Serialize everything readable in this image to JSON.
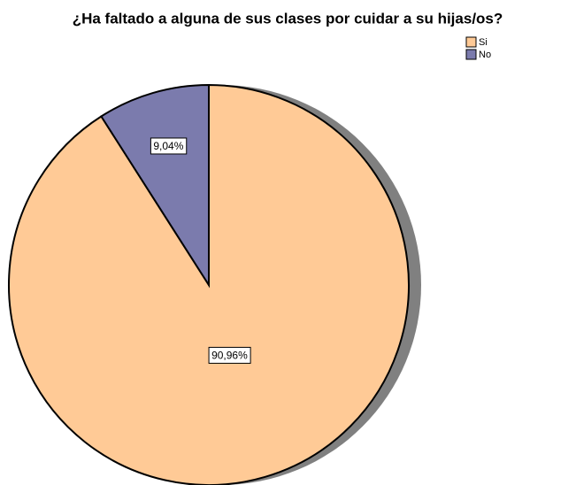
{
  "chart_data": {
    "type": "pie",
    "title": "¿Ha faltado a alguna de sus clases por cuidar a su hijas/os?",
    "categories": [
      "Si",
      "No"
    ],
    "values": [
      90.96,
      9.04
    ],
    "value_labels": [
      "90,96%",
      "9,04%"
    ],
    "colors": [
      "#ffca96",
      "#7b7bad"
    ],
    "legend": "top-right"
  }
}
